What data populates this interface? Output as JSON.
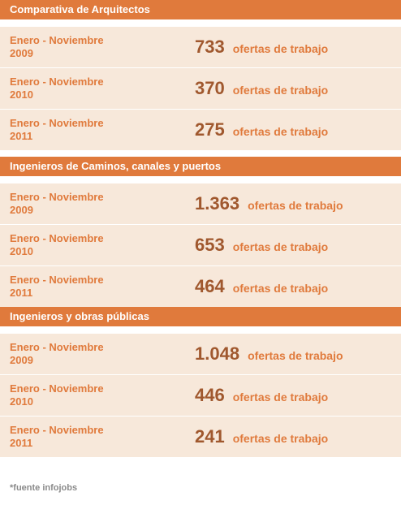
{
  "chart_data": {
    "type": "table",
    "columns": [
      "Periodo",
      "Ofertas"
    ],
    "unit_label": "ofertas de trabajo",
    "groups": [
      {
        "title": "Comparativa de Arquitectos",
        "rows": [
          {
            "period_line1": "Enero - Noviembre",
            "period_line2": "2009",
            "value": "733"
          },
          {
            "period_line1": "Enero - Noviembre",
            "period_line2": "2010",
            "value": "370"
          },
          {
            "period_line1": "Enero - Noviembre",
            "period_line2": "2011",
            "value": "275"
          }
        ]
      },
      {
        "title": "Ingenieros de Caminos, canales y puertos",
        "rows": [
          {
            "period_line1": "Enero - Noviembre",
            "period_line2": "2009",
            "value": "1.363"
          },
          {
            "period_line1": "Enero - Noviembre",
            "period_line2": "2010",
            "value": "653"
          },
          {
            "period_line1": "Enero - Noviembre",
            "period_line2": "2011",
            "value": "464"
          }
        ]
      },
      {
        "title": "Ingenieros y obras públicas",
        "rows": [
          {
            "period_line1": "Enero - Noviembre",
            "period_line2": "2009",
            "value": "1.048"
          },
          {
            "period_line1": "Enero - Noviembre",
            "period_line2": "2010",
            "value": "446"
          },
          {
            "period_line1": "Enero - Noviembre",
            "period_line2": "2011",
            "value": "241"
          }
        ]
      }
    ]
  },
  "footer": {
    "source": "*fuente infojobs"
  },
  "colors": {
    "accent": "#e07a3c",
    "row_bg": "#f7e8da",
    "value": "#a0582e"
  }
}
